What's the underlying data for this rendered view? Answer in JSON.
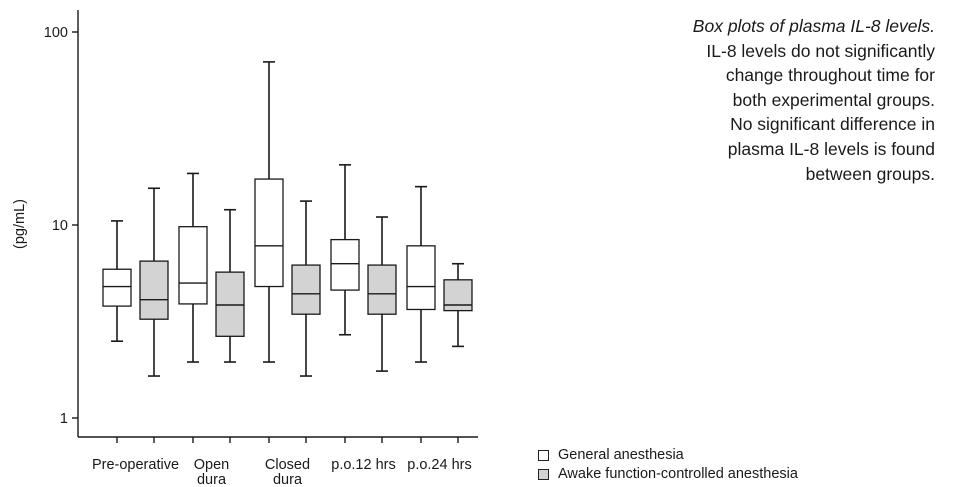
{
  "caption": {
    "title": "Box plots of plasma IL-8 levels.",
    "body": "IL-8 levels do not significantly\nchange throughout time for\nboth experimental groups.\nNo significant difference in\nplasma IL-8 levels is found\nbetween groups."
  },
  "legend": {
    "items": [
      {
        "label": "General anesthesia",
        "color": "#ffffff"
      },
      {
        "label": "Awake function-controlled anesthesia",
        "color": "#d3d3d3"
      }
    ]
  },
  "chart_data": {
    "type": "box",
    "ylabel": "(pg/mL)",
    "yscale": "log",
    "ylim": [
      0.75,
      130
    ],
    "yticks": [
      1,
      10,
      100
    ],
    "ytick_labels": [
      "1",
      "10",
      "100"
    ],
    "categories": [
      [
        "Pre-operative"
      ],
      [
        "Open",
        "dura"
      ],
      [
        "Closed",
        "dura"
      ],
      [
        "p.o.12 hrs"
      ],
      [
        "p.o.24 hrs"
      ]
    ],
    "grid": false,
    "legend_position": "bottom-right",
    "series": [
      {
        "name": "General anesthesia",
        "color": "#ffffff",
        "boxes": [
          {
            "min": 2.5,
            "q1": 3.8,
            "median": 4.8,
            "q3": 5.9,
            "max": 10.5
          },
          {
            "min": 1.95,
            "q1": 3.9,
            "median": 5.0,
            "q3": 9.8,
            "max": 18.5
          },
          {
            "min": 1.95,
            "q1": 4.8,
            "median": 7.8,
            "q3": 17.3,
            "max": 70
          },
          {
            "min": 2.7,
            "q1": 4.6,
            "median": 6.3,
            "q3": 8.4,
            "max": 20.5
          },
          {
            "min": 1.95,
            "q1": 3.65,
            "median": 4.8,
            "q3": 7.8,
            "max": 15.8
          }
        ]
      },
      {
        "name": "Awake function-controlled anesthesia",
        "color": "#d3d3d3",
        "boxes": [
          {
            "min": 1.65,
            "q1": 3.25,
            "median": 4.1,
            "q3": 6.5,
            "max": 15.5
          },
          {
            "min": 1.95,
            "q1": 2.65,
            "median": 3.85,
            "q3": 5.7,
            "max": 12.0
          },
          {
            "min": 1.65,
            "q1": 3.45,
            "median": 4.4,
            "q3": 6.2,
            "max": 13.3
          },
          {
            "min": 1.75,
            "q1": 3.45,
            "median": 4.4,
            "q3": 6.2,
            "max": 11.0
          },
          {
            "min": 2.35,
            "q1": 3.6,
            "median": 3.85,
            "q3": 5.2,
            "max": 6.3
          }
        ]
      }
    ]
  }
}
